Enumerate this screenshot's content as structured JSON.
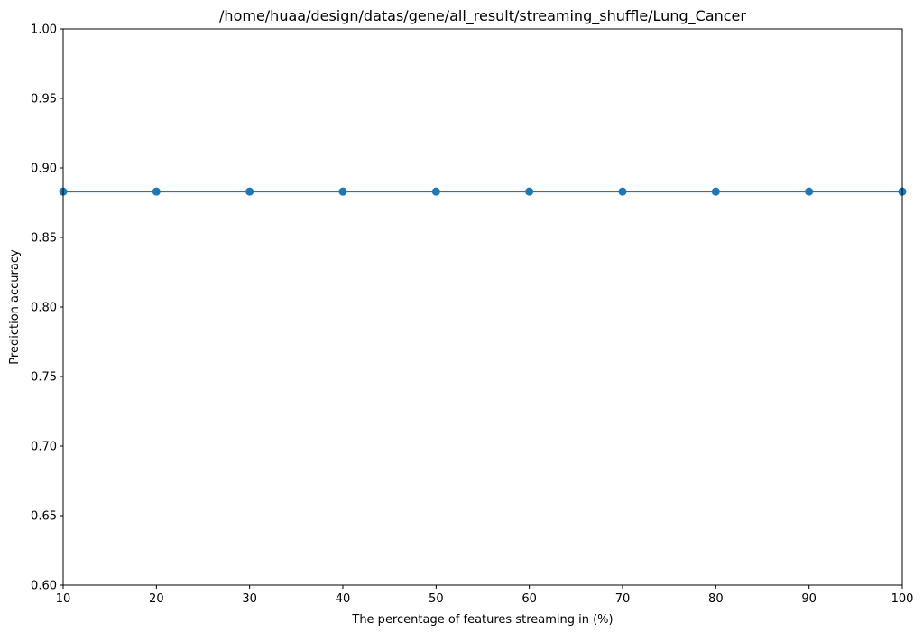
{
  "chart_data": {
    "type": "line",
    "title": "/home/huaa/design/datas/gene/all_result/streaming_shuffle/Lung_Cancer",
    "xlabel": "The percentage of features streaming in (%)",
    "ylabel": "Prediction accuracy",
    "xlim": [
      10,
      100
    ],
    "ylim": [
      0.6,
      1.0
    ],
    "xticks": [
      10,
      20,
      30,
      40,
      50,
      60,
      70,
      80,
      90,
      100
    ],
    "yticks": [
      0.6,
      0.65,
      0.7,
      0.75,
      0.8,
      0.85,
      0.9,
      0.95,
      1.0
    ],
    "ytick_labels": [
      "0.60",
      "0.65",
      "0.70",
      "0.75",
      "0.80",
      "0.85",
      "0.90",
      "0.95",
      "1.00"
    ],
    "grid": false,
    "series": [
      {
        "color": "#1f77b4",
        "marker": "circle",
        "x": [
          10,
          20,
          30,
          40,
          50,
          60,
          70,
          80,
          90,
          100
        ],
        "y": [
          0.883,
          0.883,
          0.883,
          0.883,
          0.883,
          0.883,
          0.883,
          0.883,
          0.883,
          0.883
        ]
      }
    ]
  }
}
